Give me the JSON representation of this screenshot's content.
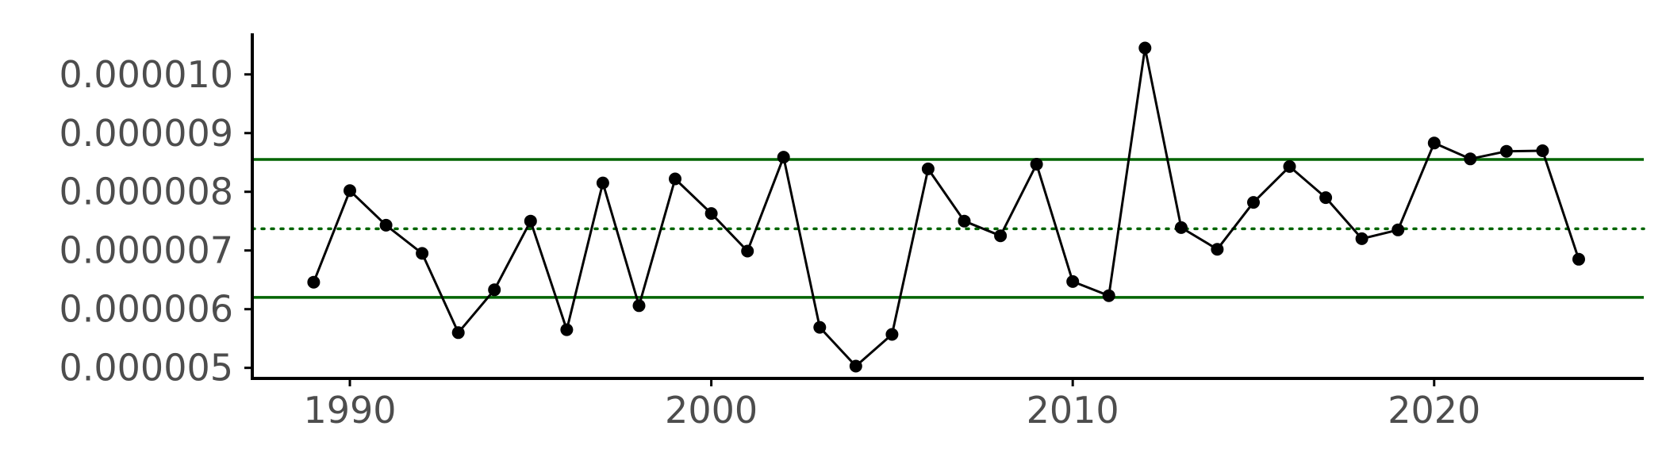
{
  "chart_data": {
    "type": "line",
    "title": "",
    "xlabel": "",
    "ylabel": "",
    "xlim": [
      1987.3,
      2025.8
    ],
    "ylim": [
      4.82e-06,
      1.07e-05
    ],
    "x_ticks": [
      1990,
      2000,
      2010,
      2020
    ],
    "x_tick_labels": [
      "1990",
      "2000",
      "2010",
      "2020"
    ],
    "y_ticks": [
      5e-06,
      6e-06,
      7e-06,
      8e-06,
      9e-06,
      1e-05
    ],
    "y_tick_labels": [
      "0.000005",
      "0.000006",
      "0.000007",
      "0.000008",
      "0.000009",
      "0.000010"
    ],
    "grid": false,
    "series": [
      {
        "color": "#000000",
        "points": [
          [
            1989,
            6.46e-06
          ],
          [
            1990,
            8.02e-06
          ],
          [
            1991,
            7.43e-06
          ],
          [
            1992,
            6.95e-06
          ],
          [
            1993,
            5.6e-06
          ],
          [
            1994,
            6.33e-06
          ],
          [
            1995,
            7.5e-06
          ],
          [
            1996,
            5.65e-06
          ],
          [
            1997,
            8.15e-06
          ],
          [
            1998,
            6.06e-06
          ],
          [
            1999,
            8.22e-06
          ],
          [
            2000,
            7.63e-06
          ],
          [
            2001,
            6.99e-06
          ],
          [
            2002,
            8.59e-06
          ],
          [
            2003,
            5.69e-06
          ],
          [
            2004,
            5.03e-06
          ],
          [
            2005,
            5.57e-06
          ],
          [
            2006,
            8.39e-06
          ],
          [
            2007,
            7.5e-06
          ],
          [
            2008,
            7.25e-06
          ],
          [
            2009,
            8.47e-06
          ],
          [
            2010,
            6.47e-06
          ],
          [
            2011,
            6.23e-06
          ],
          [
            2012,
            1.045e-05
          ],
          [
            2013,
            7.39e-06
          ],
          [
            2014,
            7.02e-06
          ],
          [
            2015,
            7.82e-06
          ],
          [
            2016,
            8.43e-06
          ],
          [
            2017,
            7.9e-06
          ],
          [
            2018,
            7.2e-06
          ],
          [
            2019,
            7.35e-06
          ],
          [
            2020,
            8.83e-06
          ],
          [
            2021,
            8.56e-06
          ],
          [
            2022,
            8.69e-06
          ],
          [
            2023,
            8.7e-06
          ],
          [
            2024,
            6.85e-06
          ]
        ]
      }
    ],
    "reference_lines": [
      {
        "y": 8.55e-06,
        "style": "solid",
        "color": "#006400"
      },
      {
        "y": 7.37e-06,
        "style": "dotted",
        "color": "#006400"
      },
      {
        "y": 6.2e-06,
        "style": "solid",
        "color": "#006400"
      }
    ]
  }
}
